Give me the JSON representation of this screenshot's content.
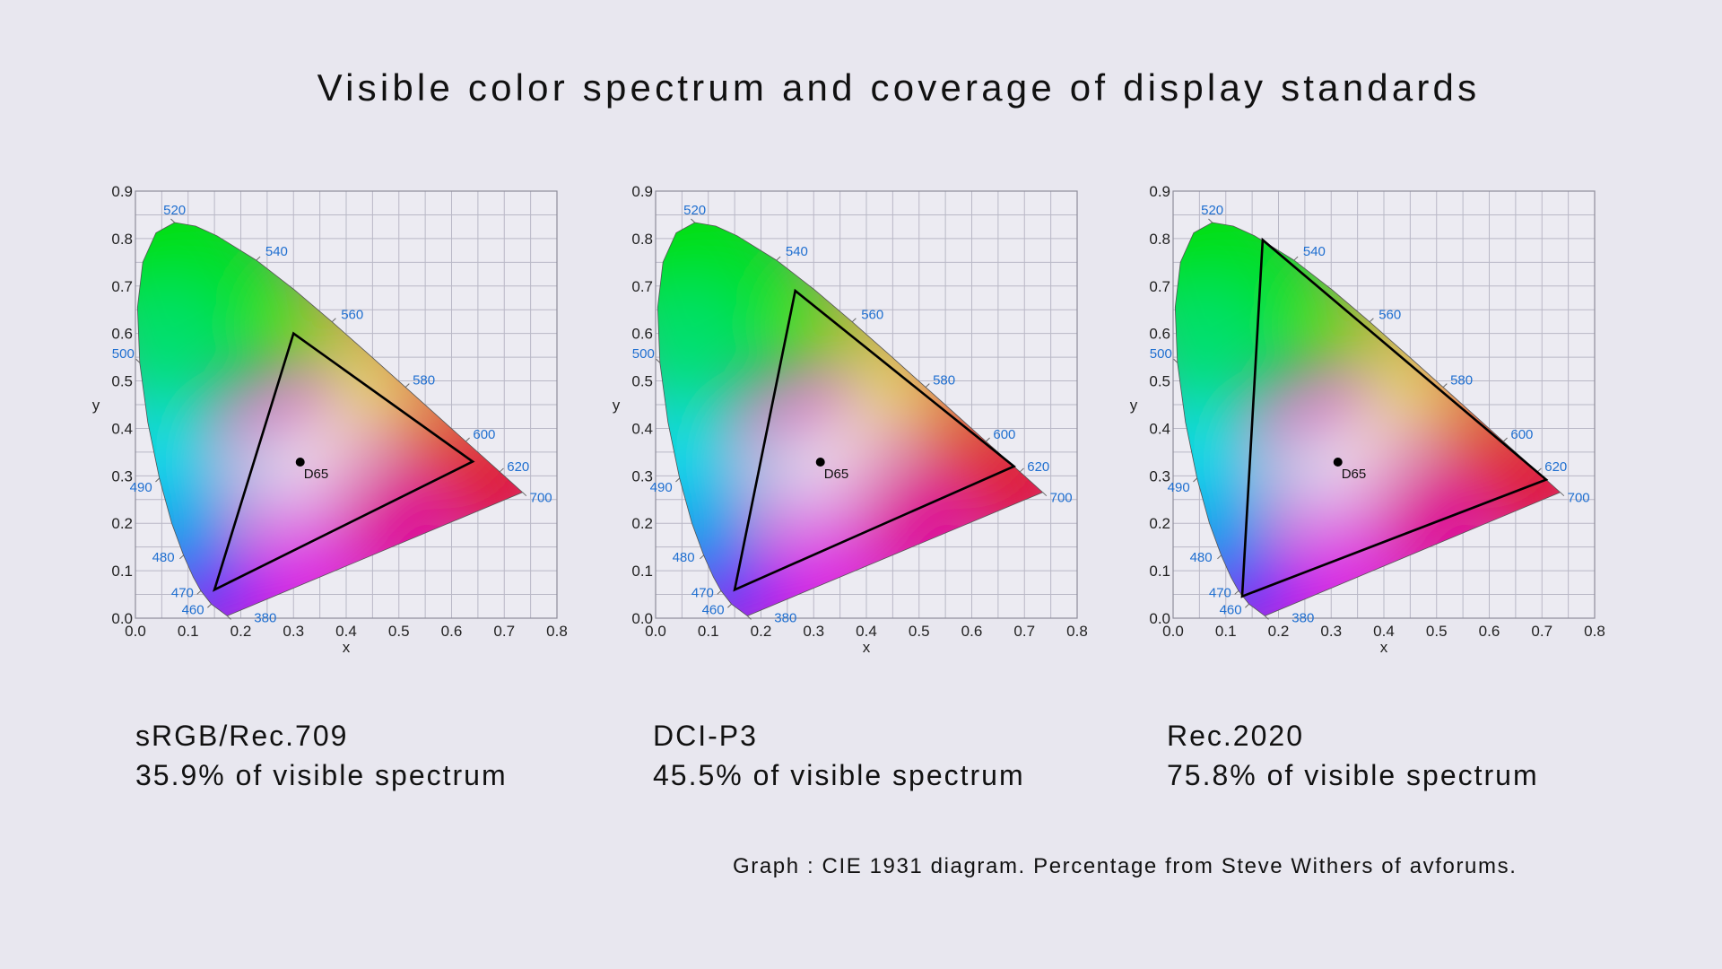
{
  "title": "Visible color spectrum and coverage of display standards",
  "footer": "Graph : CIE 1931 diagram. Percentage from  Steve Withers of avforums.",
  "colors": {
    "background": "#e8e7ef",
    "wavelength_label": "#1f6fd0",
    "grid": "#b9b8c6",
    "gamut_outline": "#000000"
  },
  "chart_data": [
    {
      "type": "scatter",
      "name": "sRGB/Rec.709",
      "coverage": "35.9% of visible spectrum",
      "xlabel": "x",
      "ylabel": "y",
      "xlim": [
        0,
        0.8
      ],
      "ylim": [
        0,
        0.9
      ],
      "xticks": [
        "0.0",
        "0.1",
        "0.2",
        "0.3",
        "0.4",
        "0.5",
        "0.6",
        "0.7",
        "0.8"
      ],
      "yticks": [
        "0.0",
        "0.1",
        "0.2",
        "0.3",
        "0.4",
        "0.5",
        "0.6",
        "0.7",
        "0.8",
        "0.9"
      ],
      "grid": true,
      "gamut": [
        [
          0.64,
          0.33
        ],
        [
          0.3,
          0.6
        ],
        [
          0.15,
          0.06
        ]
      ],
      "white_point": {
        "label": "D65",
        "x": 0.3127,
        "y": 0.329
      }
    },
    {
      "type": "scatter",
      "name": "DCI-P3",
      "coverage": "45.5% of visible spectrum",
      "xlabel": "x",
      "ylabel": "y",
      "xlim": [
        0,
        0.8
      ],
      "ylim": [
        0,
        0.9
      ],
      "xticks": [
        "0.0",
        "0.1",
        "0.2",
        "0.3",
        "0.4",
        "0.5",
        "0.6",
        "0.7",
        "0.8"
      ],
      "yticks": [
        "0.0",
        "0.1",
        "0.2",
        "0.3",
        "0.4",
        "0.5",
        "0.6",
        "0.7",
        "0.8",
        "0.9"
      ],
      "grid": true,
      "gamut": [
        [
          0.68,
          0.32
        ],
        [
          0.265,
          0.69
        ],
        [
          0.15,
          0.06
        ]
      ],
      "white_point": {
        "label": "D65",
        "x": 0.3127,
        "y": 0.329
      }
    },
    {
      "type": "scatter",
      "name": "Rec.2020",
      "coverage": "75.8% of visible spectrum",
      "xlabel": "x",
      "ylabel": "y",
      "xlim": [
        0,
        0.8
      ],
      "ylim": [
        0,
        0.9
      ],
      "xticks": [
        "0.0",
        "0.1",
        "0.2",
        "0.3",
        "0.4",
        "0.5",
        "0.6",
        "0.7",
        "0.8"
      ],
      "yticks": [
        "0.0",
        "0.1",
        "0.2",
        "0.3",
        "0.4",
        "0.5",
        "0.6",
        "0.7",
        "0.8",
        "0.9"
      ],
      "grid": true,
      "gamut": [
        [
          0.708,
          0.292
        ],
        [
          0.17,
          0.797
        ],
        [
          0.131,
          0.046
        ]
      ],
      "white_point": {
        "label": "D65",
        "x": 0.3127,
        "y": 0.329
      }
    }
  ],
  "spectral_locus": [
    [
      380,
      0.1741,
      0.005
    ],
    [
      460,
      0.144,
      0.0297
    ],
    [
      470,
      0.1241,
      0.0578
    ],
    [
      475,
      0.1096,
      0.0868
    ],
    [
      480,
      0.0913,
      0.1327
    ],
    [
      485,
      0.0687,
      0.2007
    ],
    [
      490,
      0.0454,
      0.295
    ],
    [
      495,
      0.0235,
      0.4127
    ],
    [
      500,
      0.0082,
      0.5384
    ],
    [
      505,
      0.0039,
      0.6548
    ],
    [
      510,
      0.0139,
      0.7502
    ],
    [
      515,
      0.0389,
      0.812
    ],
    [
      520,
      0.0743,
      0.8338
    ],
    [
      525,
      0.1142,
      0.8262
    ],
    [
      530,
      0.1547,
      0.8059
    ],
    [
      540,
      0.2296,
      0.7543
    ],
    [
      550,
      0.3016,
      0.6923
    ],
    [
      560,
      0.3731,
      0.6245
    ],
    [
      570,
      0.4441,
      0.5547
    ],
    [
      580,
      0.5125,
      0.4866
    ],
    [
      590,
      0.5752,
      0.4242
    ],
    [
      600,
      0.627,
      0.3725
    ],
    [
      620,
      0.6915,
      0.3083
    ],
    [
      700,
      0.7347,
      0.2653
    ]
  ],
  "wavelength_labels": [
    "380",
    "460",
    "470",
    "480",
    "490",
    "500",
    "520",
    "540",
    "560",
    "580",
    "600",
    "620",
    "700"
  ]
}
